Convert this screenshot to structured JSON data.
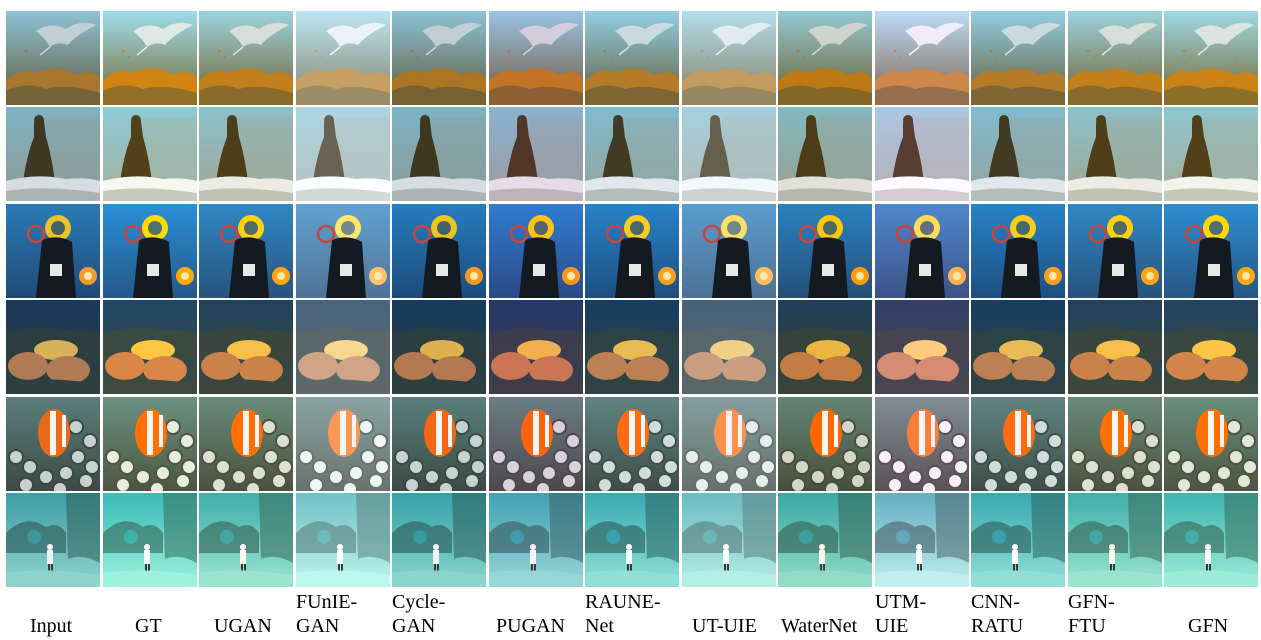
{
  "columns": [
    {
      "id": "input",
      "label": "Input",
      "tone": {
        "bright": 1.0,
        "sat": 1.0,
        "tint": "none"
      }
    },
    {
      "id": "gt",
      "label": "GT",
      "tone": {
        "bright": 1.1,
        "sat": 1.25,
        "tint": "warm"
      }
    },
    {
      "id": "ugan",
      "label": "UGAN",
      "tone": {
        "bright": 1.05,
        "sat": 1.15,
        "tint": "warm"
      }
    },
    {
      "id": "funie",
      "label": "FUnIE-\nGAN",
      "tone": {
        "bright": 1.2,
        "sat": 0.85,
        "tint": "pale"
      }
    },
    {
      "id": "cyclegan",
      "label": "Cycle-\nGAN",
      "tone": {
        "bright": 1.0,
        "sat": 1.1,
        "tint": "none"
      }
    },
    {
      "id": "pugan",
      "label": "PUGAN",
      "tone": {
        "bright": 1.0,
        "sat": 1.2,
        "tint": "pink"
      }
    },
    {
      "id": "raune",
      "label": "RAUNE-\nNet",
      "tone": {
        "bright": 1.05,
        "sat": 1.1,
        "tint": "none"
      }
    },
    {
      "id": "utuie",
      "label": "UT-UIE",
      "tone": {
        "bright": 1.15,
        "sat": 0.9,
        "tint": "pale"
      }
    },
    {
      "id": "waternet",
      "label": "WaterNet",
      "tone": {
        "bright": 1.0,
        "sat": 1.2,
        "tint": "warm"
      }
    },
    {
      "id": "utmuie",
      "label": "UTM-\nUIE",
      "tone": {
        "bright": 1.15,
        "sat": 0.85,
        "tint": "pink"
      }
    },
    {
      "id": "cnnratu",
      "label": "CNN-\nRATU",
      "tone": {
        "bright": 1.05,
        "sat": 1.1,
        "tint": "none"
      }
    },
    {
      "id": "gfnftu",
      "label": "GFN-\nFTU",
      "tone": {
        "bright": 1.05,
        "sat": 1.15,
        "tint": "warm"
      }
    },
    {
      "id": "gfn",
      "label": "GFN",
      "tone": {
        "bright": 1.08,
        "sat": 1.2,
        "tint": "warm"
      }
    }
  ],
  "rows": [
    {
      "id": "manta-ray",
      "scene": "manta",
      "colors": {
        "top": "#8fc3d6",
        "bottom": "#5f5a3a",
        "accent": "#c9d3d6",
        "detail": "#a8762c"
      }
    },
    {
      "id": "diver-statue",
      "scene": "statue",
      "colors": {
        "top": "#7fb2c4",
        "bottom": "#8e9a94",
        "accent": "#3e3722",
        "detail": "#d6dde0"
      }
    },
    {
      "id": "scuba-diver",
      "scene": "diver",
      "colors": {
        "top": "#2b7bb8",
        "bottom": "#1f4a76",
        "accent": "#e8c32a",
        "detail": "#f29a2e"
      }
    },
    {
      "id": "table-coral",
      "scene": "coral",
      "colors": {
        "top": "#183a5a",
        "bottom": "#2f3f3e",
        "accent": "#d8b25a",
        "detail": "#b07a55"
      }
    },
    {
      "id": "clownfish",
      "scene": "clownfish",
      "colors": {
        "top": "#6d9a98",
        "bottom": "#3d4a44",
        "accent": "#e86a1a",
        "detail": "#c8d2d2"
      }
    },
    {
      "id": "freediver-reef",
      "scene": "freediver",
      "colors": {
        "top": "#3c9ea5",
        "bottom": "#8fd3cc",
        "accent": "#f2f2f2",
        "detail": "#2f5e5a"
      }
    }
  ]
}
